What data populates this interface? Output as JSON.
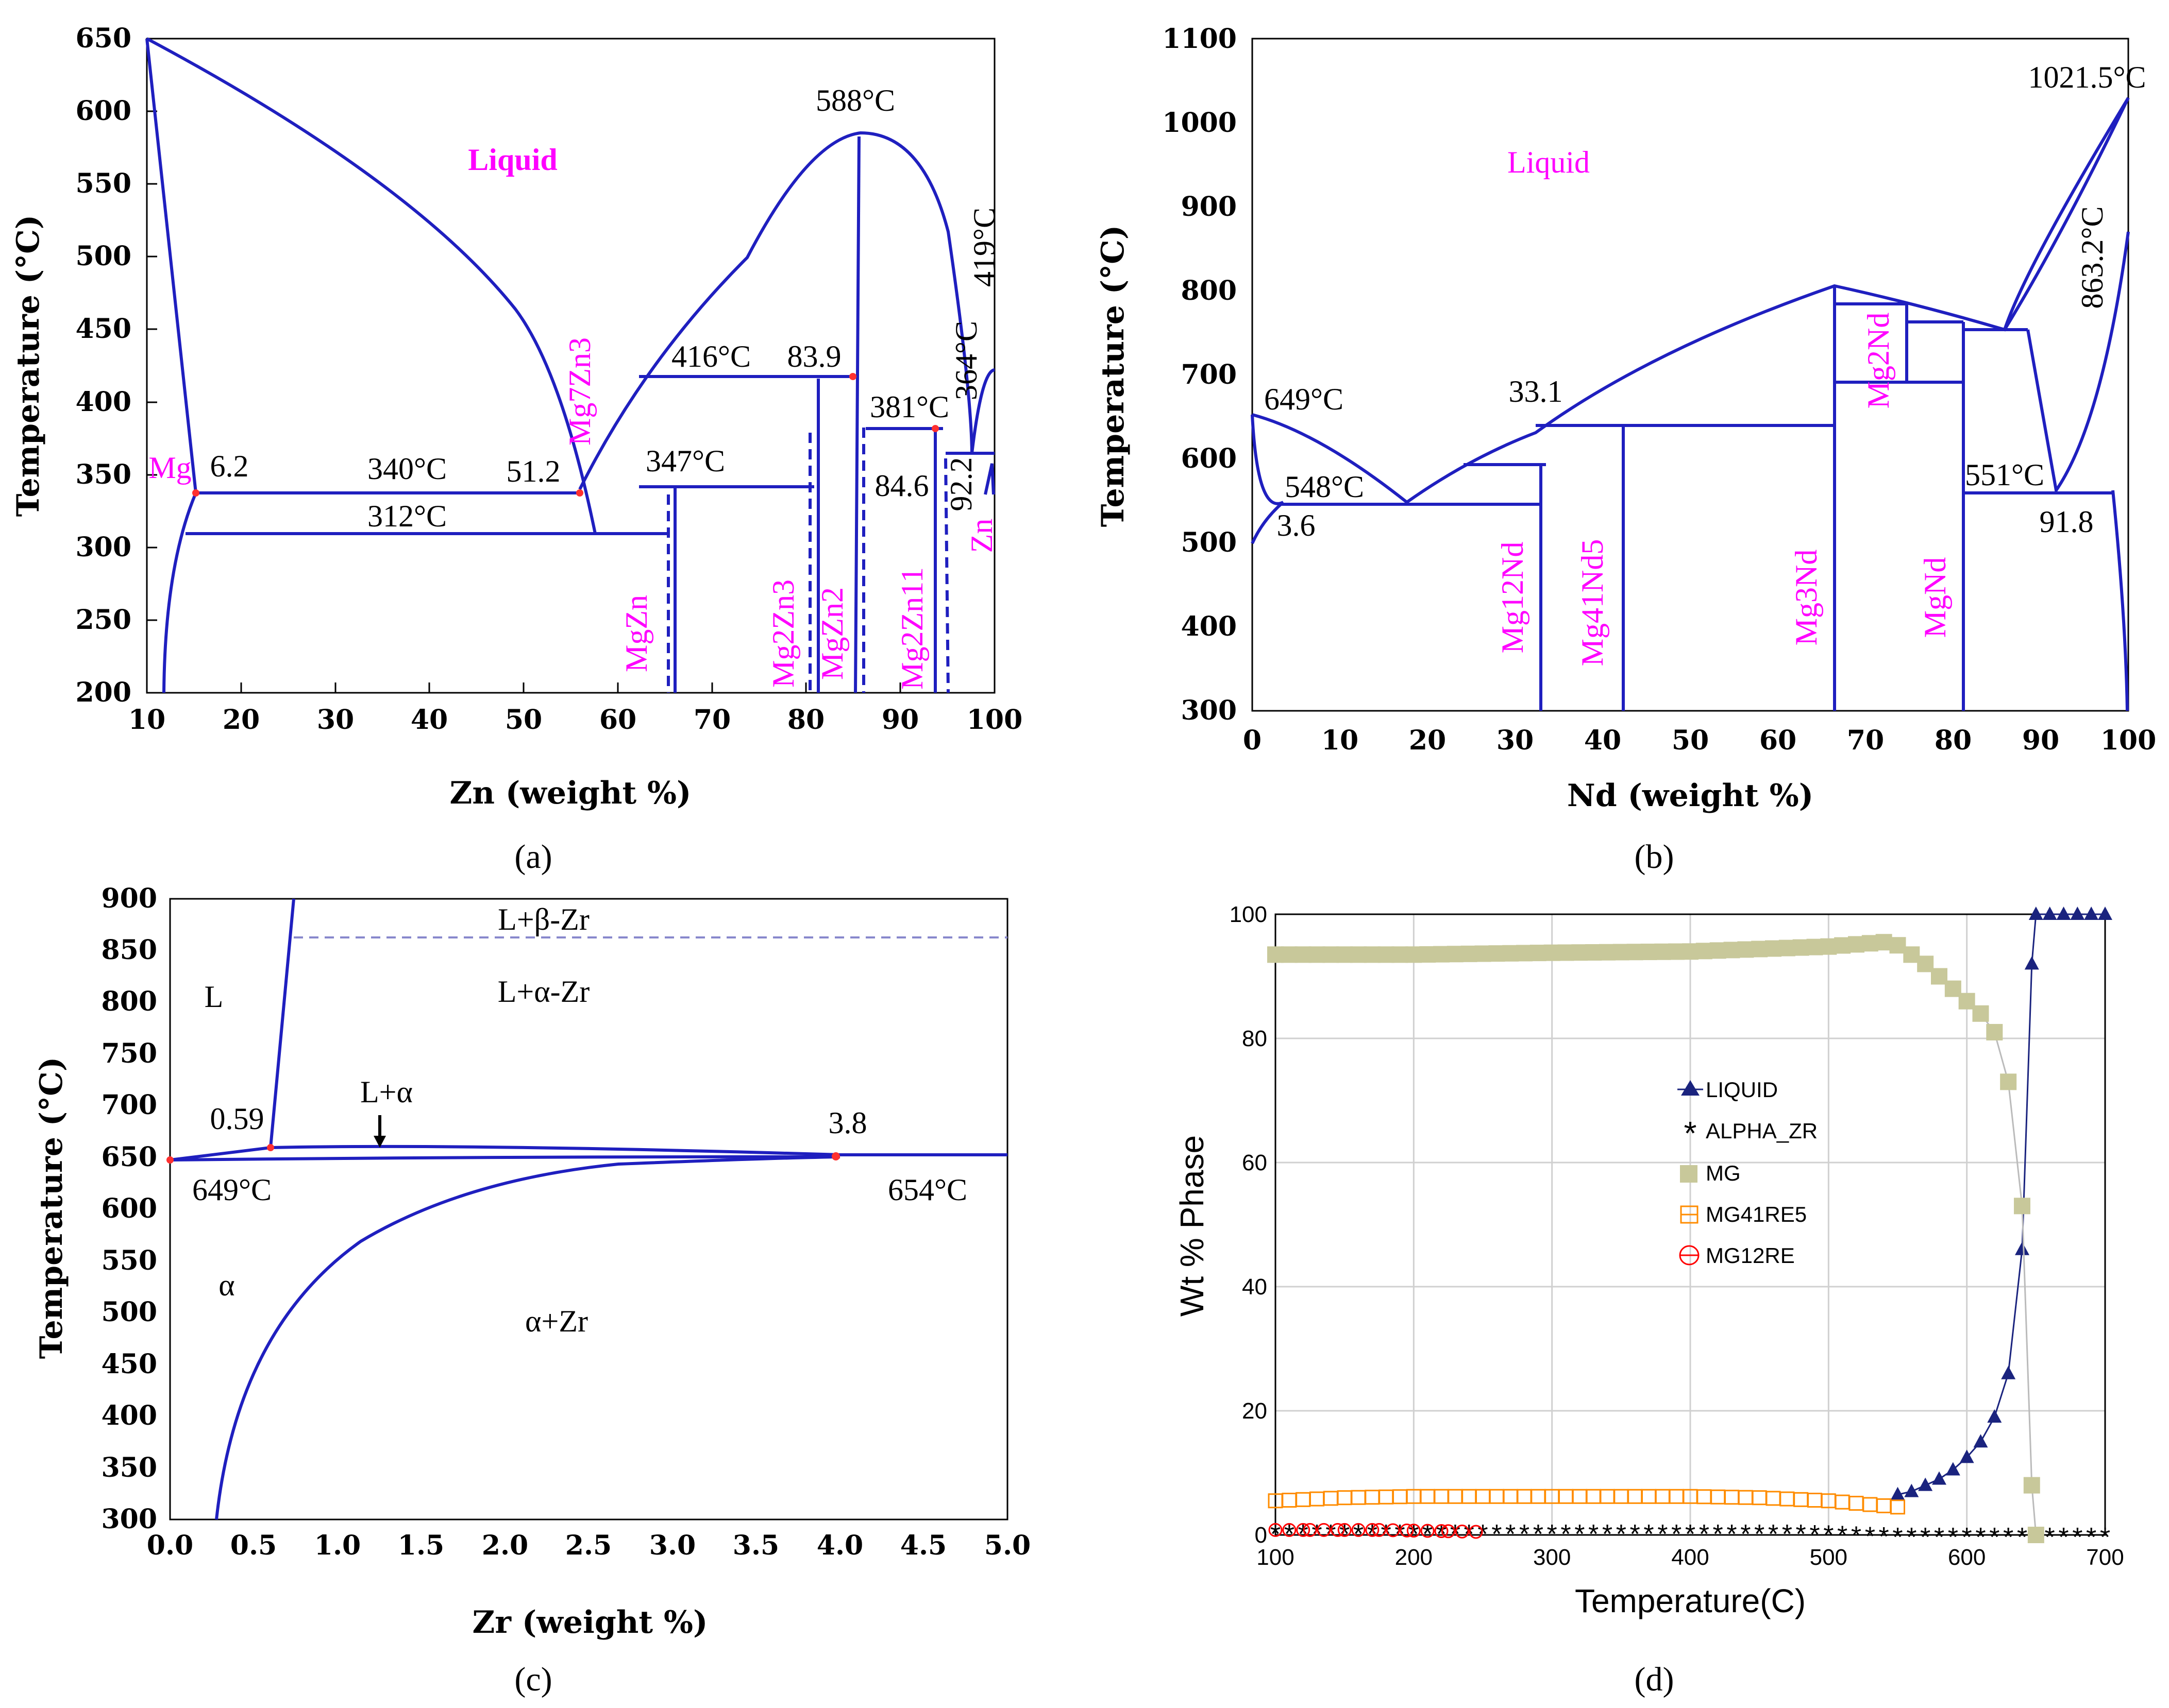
{
  "panels": [
    {
      "id": "a",
      "caption": "(a)",
      "xlabel": "Zn (weight %)",
      "ylabel": "Temperature (°C)",
      "xticks": [
        "10",
        "20",
        "30",
        "40",
        "50",
        "60",
        "70",
        "80",
        "90",
        "100"
      ],
      "yticks": [
        "200",
        "250",
        "300",
        "350",
        "400",
        "450",
        "500",
        "550",
        "600",
        "650"
      ],
      "annotations": [
        "588°C",
        "416°C",
        "83.9",
        "381°C",
        "364°C",
        "419°C",
        "84.6",
        "92.2",
        "347°C",
        "340°C",
        "51.2",
        "6.2",
        "312°C"
      ],
      "phase_labels": [
        "Liquid",
        "Mg",
        "Mg7Zn3",
        "MgZn",
        "Mg2Zn3",
        "MgZn2",
        "Mg2Zn11",
        "Zn"
      ]
    },
    {
      "id": "b",
      "caption": "(b)",
      "xlabel": "Nd (weight %)",
      "ylabel": "Temperature (°C)",
      "xticks": [
        "0",
        "10",
        "20",
        "30",
        "40",
        "50",
        "60",
        "70",
        "80",
        "90",
        "100"
      ],
      "yticks": [
        "300",
        "400",
        "500",
        "600",
        "700",
        "800",
        "900",
        "1000",
        "1100"
      ],
      "annotations": [
        "1021.5°C",
        "863.2°C",
        "649°C",
        "33.1",
        "548°C",
        "3.6",
        "551°C",
        "91.8"
      ],
      "phase_labels": [
        "Liquid",
        "Mg12Nd",
        "Mg41Nd5",
        "Mg3Nd",
        "Mg2Nd",
        "MgNd"
      ]
    },
    {
      "id": "c",
      "caption": "(c)",
      "xlabel": "Zr (weight %)",
      "ylabel": "Temperature (°C)",
      "xticks": [
        "0.0",
        "0.5",
        "1.0",
        "1.5",
        "2.0",
        "2.5",
        "3.0",
        "3.5",
        "4.0",
        "4.5",
        "5.0"
      ],
      "yticks": [
        "300",
        "350",
        "400",
        "450",
        "500",
        "550",
        "600",
        "650",
        "700",
        "750",
        "800",
        "850",
        "900"
      ],
      "annotations": [
        "0.59",
        "3.8",
        "649°C",
        "654°C"
      ],
      "phase_labels": [
        "L",
        "L+β-Zr",
        "L+α-Zr",
        "L+α",
        "α",
        "α+Zr"
      ]
    }
  ],
  "chart_data": {
    "type": "line",
    "caption": "(d)",
    "xlabel": "Temperature(C)",
    "ylabel": "Wt % Phase",
    "xlim": [
      100,
      700
    ],
    "ylim": [
      0,
      100
    ],
    "xticks": [
      "100",
      "200",
      "300",
      "400",
      "500",
      "600",
      "700"
    ],
    "yticks": [
      "0",
      "20",
      "40",
      "60",
      "80",
      "100"
    ],
    "grid": true,
    "legend_position": "center",
    "series": [
      {
        "name": "LIQUID",
        "color": "#1a237e",
        "marker": "triangle",
        "x": [
          550,
          560,
          570,
          580,
          590,
          600,
          610,
          620,
          630,
          640,
          647,
          650,
          660,
          670,
          680,
          690,
          700
        ],
        "values": [
          6.5,
          7,
          8,
          9,
          10.5,
          12.5,
          15,
          19,
          26,
          46,
          92,
          100,
          100,
          100,
          100,
          100,
          100
        ]
      },
      {
        "name": "ALPHA_ZR",
        "color": "#000000",
        "marker": "asterisk",
        "x": [
          100,
          150,
          200,
          250,
          300,
          350,
          400,
          450,
          480,
          550,
          650,
          700
        ],
        "values": [
          0.5,
          0.5,
          0.5,
          0.5,
          0.5,
          0.5,
          0.5,
          0.5,
          0.5,
          0,
          0,
          0
        ]
      },
      {
        "name": "MG",
        "color": "#c8c89a",
        "marker": "square",
        "x": [
          100,
          200,
          300,
          400,
          500,
          540,
          550,
          560,
          570,
          580,
          590,
          600,
          610,
          620,
          630,
          640,
          647,
          650
        ],
        "values": [
          93.5,
          93.5,
          93.8,
          94,
          94.8,
          95.5,
          95,
          93.5,
          92,
          90,
          88,
          86,
          84,
          81,
          73,
          53,
          8,
          0
        ]
      },
      {
        "name": "MG41RE5",
        "color": "#ff8c00",
        "marker": "open-square",
        "x": [
          100,
          150,
          200,
          250,
          300,
          350,
          400,
          450,
          500,
          540,
          550
        ],
        "values": [
          5.5,
          6,
          6.2,
          6.2,
          6.2,
          6.2,
          6.2,
          6,
          5.5,
          4.7,
          4.5
        ]
      },
      {
        "name": "MG12RE",
        "color": "#ff0000",
        "marker": "open-circle",
        "x": [
          100,
          125,
          150,
          175,
          200,
          225,
          245
        ],
        "values": [
          0.8,
          0.8,
          0.8,
          0.8,
          0.7,
          0.6,
          0.5
        ]
      }
    ]
  }
}
